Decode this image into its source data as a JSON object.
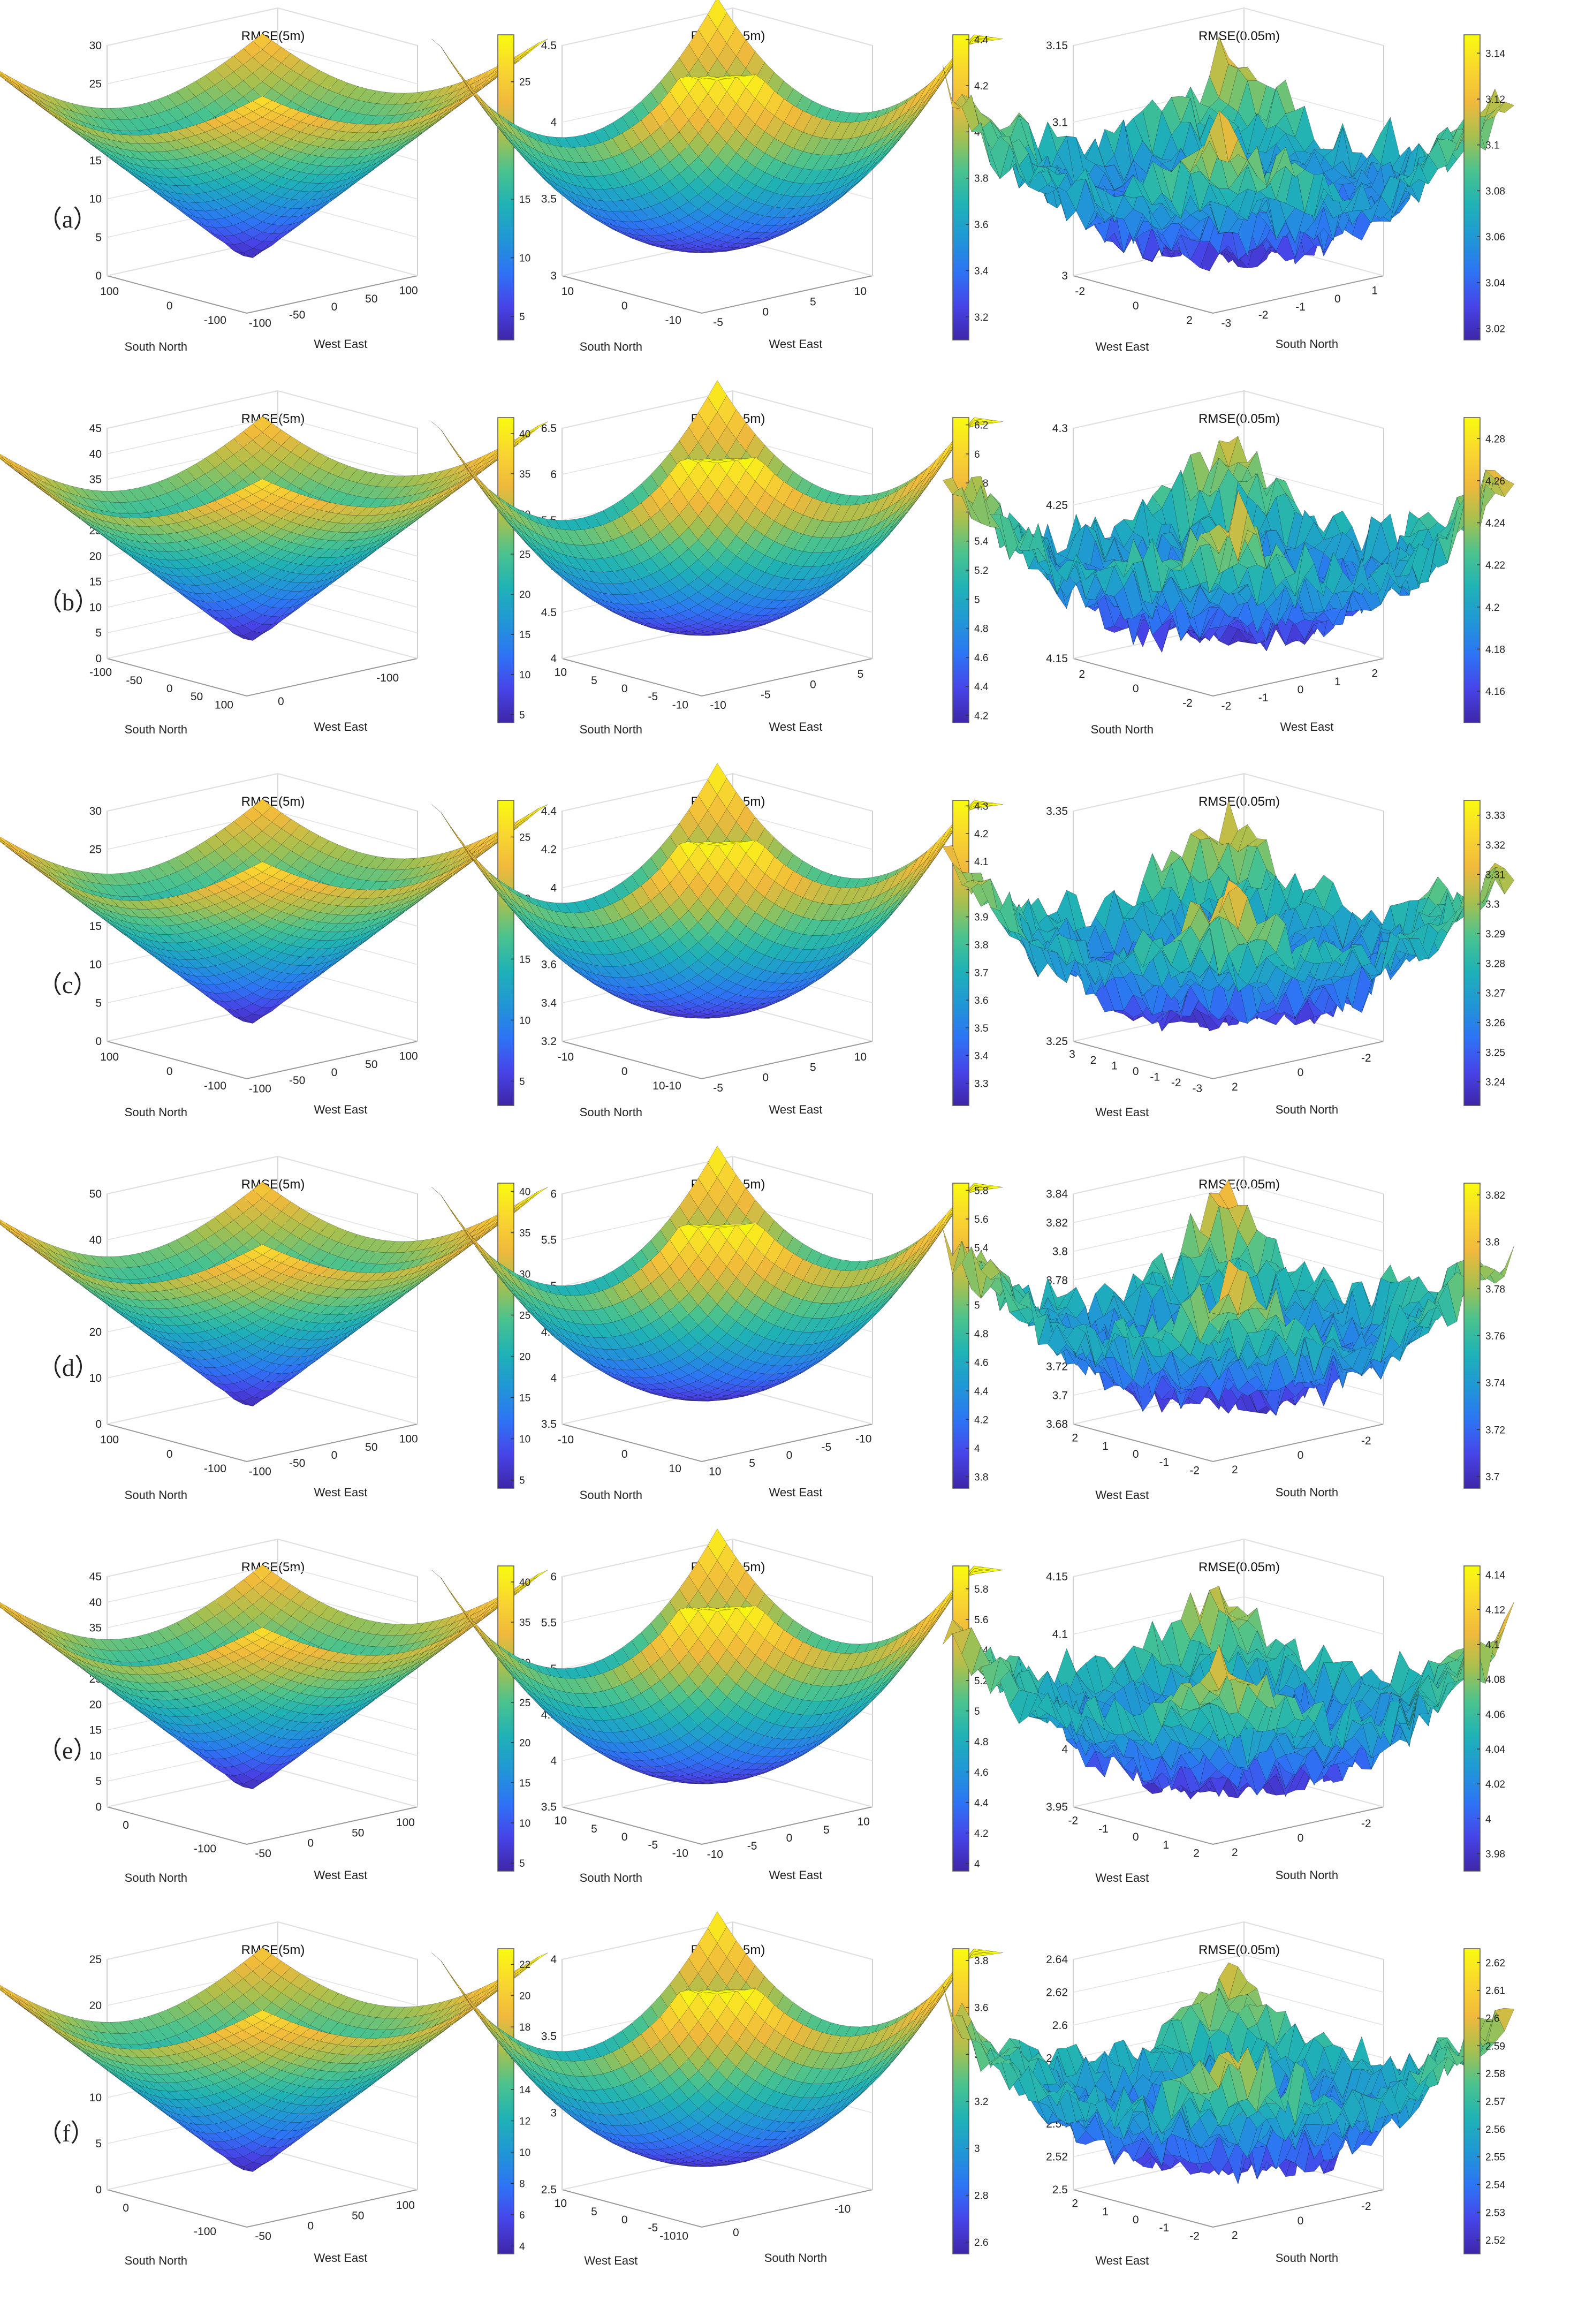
{
  "colormap": [
    "#3e26a8",
    "#4744e8",
    "#2d74f5",
    "#2097d6",
    "#1fb2b5",
    "#4bc38d",
    "#a8c04e",
    "#f0b93c",
    "#f9d72f",
    "#f9fb0e"
  ],
  "row_labels": [
    "（a）",
    "（b）",
    "（c）",
    "（d）",
    "（e）",
    "（f）"
  ],
  "chart_data": [
    {
      "row": 0,
      "col": 0,
      "type": "surface",
      "title": "RMSE(5m)",
      "xlabel": "South North",
      "ylabel": "West East",
      "xticks": [
        "100",
        "0",
        "-100"
      ],
      "yticks": [
        "-100",
        "-50",
        "0",
        "50",
        "100"
      ],
      "zticks": [
        "0",
        "5",
        "10",
        "15",
        "20",
        "25",
        "30"
      ],
      "zlim": [
        0,
        30
      ],
      "colorbar": {
        "ticks": [
          "5",
          "10",
          "15",
          "20",
          "25"
        ],
        "range": [
          3,
          29
        ]
      },
      "shape": "cone"
    },
    {
      "row": 0,
      "col": 1,
      "type": "surface",
      "title": "RMSE(0.5m)",
      "xlabel": "South North",
      "ylabel": "West East",
      "xticks": [
        "10",
        "0",
        "-10"
      ],
      "yticks": [
        "-5",
        "0",
        "5",
        "10"
      ],
      "zticks": [
        "3",
        "3.5",
        "4",
        "4.5"
      ],
      "zlim": [
        3,
        4.5
      ],
      "colorbar": {
        "ticks": [
          "3.2",
          "3.4",
          "3.6",
          "3.8",
          "4",
          "4.2",
          "4.4"
        ],
        "range": [
          3.1,
          4.42
        ]
      },
      "shape": "bowl"
    },
    {
      "row": 0,
      "col": 2,
      "type": "surface",
      "title": "RMSE(0.05m)",
      "xlabel": "West East",
      "ylabel": "South North",
      "xticks": [
        "-2",
        "0",
        "2"
      ],
      "yticks": [
        "-3",
        "-2",
        "-1",
        "0",
        "1"
      ],
      "zticks": [
        "3",
        "3.05",
        "3.1",
        "3.15"
      ],
      "zlim": [
        3,
        3.15
      ],
      "colorbar": {
        "ticks": [
          "3.02",
          "3.04",
          "3.06",
          "3.08",
          "3.1",
          "3.12",
          "3.14"
        ],
        "range": [
          3.015,
          3.148
        ]
      },
      "shape": "noisy"
    },
    {
      "row": 1,
      "col": 0,
      "type": "surface",
      "title": "RMSE(5m)",
      "xlabel": "South North",
      "ylabel": "West East",
      "xticks": [
        "-100",
        "-50",
        "0",
        "50",
        "100"
      ],
      "yticks": [
        "0",
        "-100"
      ],
      "zticks": [
        "0",
        "5",
        "10",
        "15",
        "20",
        "25",
        "30",
        "35",
        "40",
        "45"
      ],
      "zlim": [
        0,
        45
      ],
      "colorbar": {
        "ticks": [
          "5",
          "10",
          "15",
          "20",
          "25",
          "30",
          "35",
          "40"
        ],
        "range": [
          4,
          42
        ]
      },
      "shape": "cone"
    },
    {
      "row": 1,
      "col": 1,
      "type": "surface",
      "title": "RMSE(0.5m)",
      "xlabel": "South North",
      "ylabel": "West East",
      "xticks": [
        "10",
        "5",
        "0",
        "-5",
        "-10"
      ],
      "yticks": [
        "-10",
        "-5",
        "0",
        "5"
      ],
      "zticks": [
        "4",
        "4.5",
        "5",
        "5.5",
        "6",
        "6.5"
      ],
      "zlim": [
        4,
        6.5
      ],
      "colorbar": {
        "ticks": [
          "4.2",
          "4.4",
          "4.6",
          "4.8",
          "5",
          "5.2",
          "5.4",
          "5.6",
          "5.8",
          "6",
          "6.2"
        ],
        "range": [
          4.15,
          6.25
        ]
      },
      "shape": "bowl"
    },
    {
      "row": 1,
      "col": 2,
      "type": "surface",
      "title": "RMSE(0.05m)",
      "xlabel": "South North",
      "ylabel": "West East",
      "xticks": [
        "2",
        "0",
        "-2"
      ],
      "yticks": [
        "-2",
        "-1",
        "0",
        "1",
        "2"
      ],
      "zticks": [
        "4.15",
        "4.2",
        "4.25",
        "4.3"
      ],
      "zlim": [
        4.15,
        4.3
      ],
      "colorbar": {
        "ticks": [
          "4.16",
          "4.18",
          "4.2",
          "4.22",
          "4.24",
          "4.26",
          "4.28"
        ],
        "range": [
          4.145,
          4.29
        ]
      },
      "shape": "noisy"
    },
    {
      "row": 2,
      "col": 0,
      "type": "surface",
      "title": "RMSE(5m)",
      "xlabel": "South North",
      "ylabel": "West East",
      "xticks": [
        "100",
        "0",
        "-100"
      ],
      "yticks": [
        "-100",
        "-50",
        "0",
        "50",
        "100"
      ],
      "zticks": [
        "0",
        "5",
        "10",
        "15",
        "20",
        "25",
        "30"
      ],
      "zlim": [
        0,
        30
      ],
      "colorbar": {
        "ticks": [
          "5",
          "10",
          "15",
          "20",
          "25"
        ],
        "range": [
          3,
          28
        ]
      },
      "shape": "cone"
    },
    {
      "row": 2,
      "col": 1,
      "type": "surface",
      "title": "RMSE(0.5m)",
      "xlabel": "South North",
      "ylabel": "West East",
      "xticks": [
        "-10",
        "0",
        "10-10"
      ],
      "yticks": [
        "-5",
        "0",
        "5",
        "10"
      ],
      "zticks": [
        "3.2",
        "3.4",
        "3.6",
        "3.8",
        "4",
        "4.2",
        "4.4"
      ],
      "zlim": [
        3.2,
        4.4
      ],
      "colorbar": {
        "ticks": [
          "3.3",
          "3.4",
          "3.5",
          "3.6",
          "3.7",
          "3.8",
          "3.9",
          "4",
          "4.1",
          "4.2",
          "4.3"
        ],
        "range": [
          3.22,
          4.32
        ]
      },
      "shape": "bowl"
    },
    {
      "row": 2,
      "col": 2,
      "type": "surface",
      "title": "RMSE(0.05m)",
      "xlabel": "West East",
      "ylabel": "South North",
      "xticks": [
        "3",
        "2",
        "1",
        "0",
        "-1",
        "-2",
        "-3"
      ],
      "yticks": [
        "2",
        "0",
        "-2"
      ],
      "zticks": [
        "3.25",
        "3.3",
        "3.35"
      ],
      "zlim": [
        3.22,
        3.35
      ],
      "colorbar": {
        "ticks": [
          "3.24",
          "3.25",
          "3.26",
          "3.27",
          "3.28",
          "3.29",
          "3.3",
          "3.31",
          "3.32",
          "3.33"
        ],
        "range": [
          3.232,
          3.335
        ]
      },
      "shape": "noisy"
    },
    {
      "row": 3,
      "col": 0,
      "type": "surface",
      "title": "RMSE(5m)",
      "xlabel": "South North",
      "ylabel": "West East",
      "xticks": [
        "100",
        "0",
        "-100"
      ],
      "yticks": [
        "-100",
        "-50",
        "0",
        "50",
        "100"
      ],
      "zticks": [
        "0",
        "10",
        "20",
        "30",
        "40",
        "50"
      ],
      "zlim": [
        0,
        50
      ],
      "colorbar": {
        "ticks": [
          "5",
          "10",
          "15",
          "20",
          "25",
          "30",
          "35",
          "40"
        ],
        "range": [
          4,
          41
        ]
      },
      "shape": "cone"
    },
    {
      "row": 3,
      "col": 1,
      "type": "surface",
      "title": "RMSE(0.5m)",
      "xlabel": "South North",
      "ylabel": "West East",
      "xticks": [
        "-10",
        "0",
        "10"
      ],
      "yticks": [
        "10",
        "5",
        "0",
        "-5",
        "-10"
      ],
      "zticks": [
        "3.5",
        "4",
        "4.5",
        "5",
        "5.5",
        "6"
      ],
      "zlim": [
        3.5,
        6
      ],
      "colorbar": {
        "ticks": [
          "3.8",
          "4",
          "4.2",
          "4.4",
          "4.6",
          "4.8",
          "5",
          "5.2",
          "5.4",
          "5.6",
          "5.8"
        ],
        "range": [
          3.72,
          5.85
        ]
      },
      "shape": "bowl"
    },
    {
      "row": 3,
      "col": 2,
      "type": "surface",
      "title": "RMSE(0.05m)",
      "xlabel": "West East",
      "ylabel": "South North",
      "xticks": [
        "2",
        "1",
        "0",
        "-1",
        "-2"
      ],
      "yticks": [
        "2",
        "0",
        "-2"
      ],
      "zticks": [
        "3.68",
        "3.7",
        "3.72",
        "3.74",
        "3.76",
        "3.78",
        "3.8",
        "3.82",
        "3.84"
      ],
      "zlim": [
        3.68,
        3.84
      ],
      "colorbar": {
        "ticks": [
          "3.7",
          "3.72",
          "3.74",
          "3.76",
          "3.78",
          "3.8",
          "3.82"
        ],
        "range": [
          3.695,
          3.825
        ]
      },
      "shape": "noisy"
    },
    {
      "row": 4,
      "col": 0,
      "type": "surface",
      "title": "RMSE(5m)",
      "xlabel": "South North",
      "ylabel": "West East",
      "xticks": [
        "0",
        "-100"
      ],
      "yticks": [
        "-50",
        "0",
        "50",
        "100"
      ],
      "zticks": [
        "0",
        "5",
        "10",
        "15",
        "20",
        "25",
        "30",
        "35",
        "40",
        "45"
      ],
      "zlim": [
        0,
        45
      ],
      "colorbar": {
        "ticks": [
          "5",
          "10",
          "15",
          "20",
          "25",
          "30",
          "35",
          "40"
        ],
        "range": [
          4,
          42
        ]
      },
      "shape": "cone"
    },
    {
      "row": 4,
      "col": 1,
      "type": "surface",
      "title": "RMSE(0.5m)",
      "xlabel": "South North",
      "ylabel": "West East",
      "xticks": [
        "10",
        "5",
        "0",
        "-5",
        "-10"
      ],
      "yticks": [
        "-10",
        "-5",
        "0",
        "5",
        "10"
      ],
      "zticks": [
        "3.5",
        "4",
        "4.5",
        "5",
        "5.5",
        "6"
      ],
      "zlim": [
        3.5,
        6
      ],
      "colorbar": {
        "ticks": [
          "4",
          "4.2",
          "4.4",
          "4.6",
          "4.8",
          "5",
          "5.2",
          "5.4",
          "5.6",
          "5.8"
        ],
        "range": [
          3.95,
          5.95
        ]
      },
      "shape": "bowl"
    },
    {
      "row": 4,
      "col": 2,
      "type": "surface",
      "title": "RMSE(0.05m)",
      "xlabel": "West East",
      "ylabel": "South North",
      "xticks": [
        "-2",
        "-1",
        "0",
        "1",
        "2"
      ],
      "yticks": [
        "2",
        "0",
        "-2"
      ],
      "zticks": [
        "3.95",
        "4",
        "4.05",
        "4.1",
        "4.15"
      ],
      "zlim": [
        3.95,
        4.15
      ],
      "colorbar": {
        "ticks": [
          "3.98",
          "4",
          "4.02",
          "4.04",
          "4.06",
          "4.08",
          "4.1",
          "4.12",
          "4.14"
        ],
        "range": [
          3.97,
          4.145
        ]
      },
      "shape": "noisy"
    },
    {
      "row": 5,
      "col": 0,
      "type": "surface",
      "title": "RMSE(5m)",
      "xlabel": "South North",
      "ylabel": "West East",
      "xticks": [
        "0",
        "-100"
      ],
      "yticks": [
        "-50",
        "0",
        "50",
        "100"
      ],
      "zticks": [
        "0",
        "5",
        "10",
        "15",
        "20",
        "25"
      ],
      "zlim": [
        0,
        25
      ],
      "colorbar": {
        "ticks": [
          "4",
          "6",
          "8",
          "10",
          "12",
          "14",
          "16",
          "18",
          "20",
          "22"
        ],
        "range": [
          3.5,
          23
        ]
      },
      "shape": "cone"
    },
    {
      "row": 5,
      "col": 1,
      "type": "surface",
      "title": "RMSE(0.5m)",
      "xlabel": "West East",
      "ylabel": "South North",
      "xticks": [
        "10",
        "5",
        "0",
        "-5",
        "-1010"
      ],
      "yticks": [
        "0",
        "-10"
      ],
      "zticks": [
        "2.5",
        "3",
        "3.5",
        "4"
      ],
      "zlim": [
        2.5,
        4
      ],
      "colorbar": {
        "ticks": [
          "2.6",
          "2.8",
          "3",
          "3.2",
          "3.4",
          "3.6",
          "3.8"
        ],
        "range": [
          2.55,
          3.85
        ]
      },
      "shape": "bowl"
    },
    {
      "row": 5,
      "col": 2,
      "type": "surface",
      "title": "RMSE(0.05m)",
      "xlabel": "West East",
      "ylabel": "South North",
      "xticks": [
        "2",
        "1",
        "0",
        "-1",
        "-2"
      ],
      "yticks": [
        "2",
        "0",
        "-2"
      ],
      "zticks": [
        "2.5",
        "2.52",
        "2.54",
        "2.56",
        "2.58",
        "2.6",
        "2.62",
        "2.64"
      ],
      "zlim": [
        2.5,
        2.64
      ],
      "colorbar": {
        "ticks": [
          "2.52",
          "2.53",
          "2.54",
          "2.55",
          "2.56",
          "2.57",
          "2.58",
          "2.59",
          "2.6",
          "2.61",
          "2.62"
        ],
        "range": [
          2.515,
          2.625
        ]
      },
      "shape": "noisy"
    }
  ]
}
